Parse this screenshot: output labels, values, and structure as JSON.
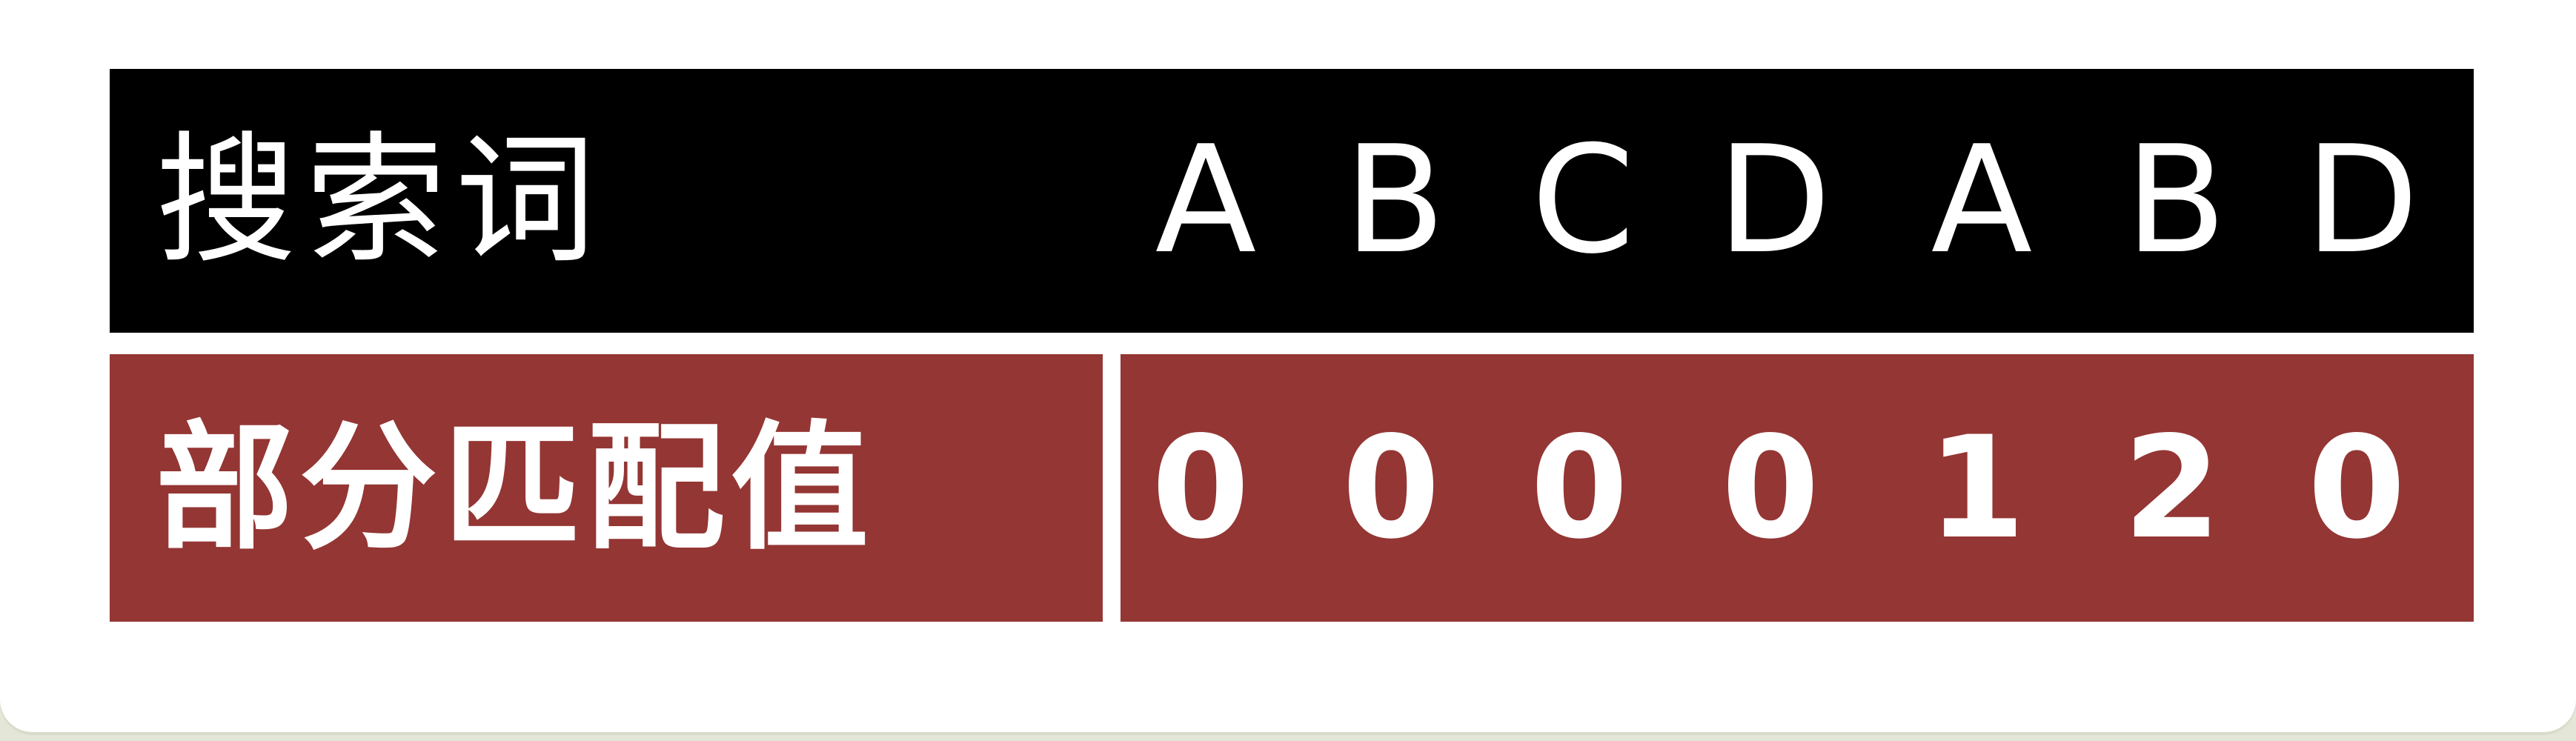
{
  "table": {
    "header_label": "搜索词",
    "value_label": "部分匹配值",
    "letters": [
      "A",
      "B",
      "C",
      "D",
      "A",
      "B",
      "D"
    ],
    "values": [
      "0",
      "0",
      "0",
      "0",
      "1",
      "2",
      "0"
    ]
  }
}
